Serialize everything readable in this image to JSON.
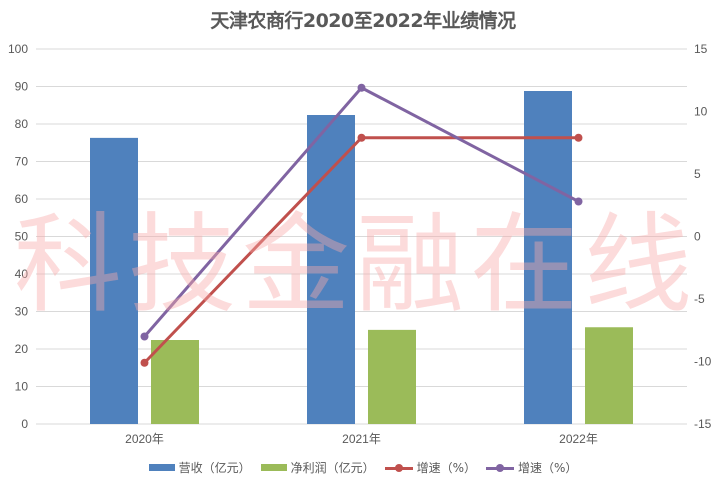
{
  "chart_data": {
    "type": "bar+line",
    "title": "天津农商行2020至2022年业绩情况",
    "categories": [
      "2020年",
      "2021年",
      "2022年"
    ],
    "series": [
      {
        "name": "营收（亿元）",
        "type": "bar",
        "axis": "left",
        "color": "#4f81bd",
        "values": [
          76.3,
          82.4,
          88.8
        ]
      },
      {
        "name": "净利润（亿元）",
        "type": "bar",
        "axis": "left",
        "color": "#9bbb59",
        "values": [
          22.4,
          25.1,
          25.8
        ]
      },
      {
        "name": "增速（%）",
        "type": "line",
        "axis": "right",
        "color": "#c0504d",
        "values": [
          -10.1,
          7.9,
          7.9
        ]
      },
      {
        "name": "增速（%）",
        "type": "line",
        "axis": "right",
        "color": "#8064a2",
        "values": [
          -8.0,
          11.9,
          2.8
        ]
      }
    ],
    "left_axis": {
      "min": 0,
      "max": 100,
      "step": 10,
      "ticks": [
        "0",
        "10",
        "20",
        "30",
        "40",
        "50",
        "60",
        "70",
        "80",
        "90",
        "100"
      ]
    },
    "right_axis": {
      "min": -15,
      "max": 15,
      "step": 5,
      "ticks": [
        "-15",
        "-10",
        "-5",
        "0",
        "5",
        "10",
        "15"
      ]
    },
    "xlabel": "",
    "ylabel": "",
    "grid": true,
    "legend_position": "bottom"
  },
  "title": "天津农商行2020至2022年业绩情况",
  "watermark": "科技金融在线",
  "legend": [
    {
      "label": "营收（亿元）",
      "kind": "bar",
      "color": "#4f81bd"
    },
    {
      "label": "净利润（亿元）",
      "kind": "bar",
      "color": "#9bbb59"
    },
    {
      "label": "增速（%）",
      "kind": "line",
      "color": "#c0504d"
    },
    {
      "label": "增速（%）",
      "kind": "line",
      "color": "#8064a2"
    }
  ]
}
